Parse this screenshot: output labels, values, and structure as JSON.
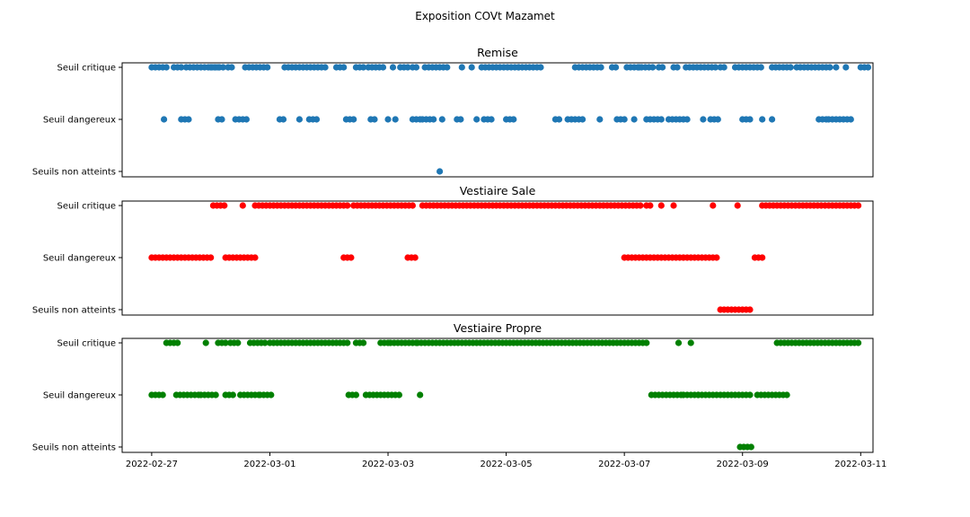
{
  "chart_data": {
    "type": "scatter",
    "suptitle": "Exposition COVt Mazamet",
    "y_categories": [
      "Seuils non atteints",
      "Seuil dangereux",
      "Seuil critique"
    ],
    "x_ticks": [
      "2022-02-27",
      "2022-03-01",
      "2022-03-03",
      "2022-03-05",
      "2022-03-07",
      "2022-03-09",
      "2022-03-11"
    ],
    "xlim": [
      "2022-02-26T12:00",
      "2022-03-11T05:00"
    ],
    "panels": [
      {
        "title": "Remise",
        "color": "#1f77b4",
        "show_x_labels": false,
        "series": {
          "Seuil critique": [
            [
              "02-27T00:00",
              "02-27T06:00"
            ],
            [
              "02-27T09:00",
              "02-27T12:00"
            ],
            [
              "02-27T14:00",
              "02-28T05:00"
            ],
            [
              "02-28T07:00",
              "02-28T09:00"
            ],
            [
              "02-28T14:00",
              "03-01T00:00"
            ],
            [
              "02-28T00:00",
              "02-28T04:00"
            ],
            [
              "03-01T06:00",
              "03-01T23:00"
            ],
            [
              "03-02T03:00",
              "03-02T07:00"
            ],
            [
              "03-02T11:00",
              "03-02T15:00"
            ],
            [
              "03-02T16:00",
              "03-02T22:00"
            ],
            [
              "03-03T02:00",
              "03-03T03:00"
            ],
            [
              "03-03T05:00",
              "03-03T08:00"
            ],
            [
              "03-03T10:00",
              "03-03T12:00"
            ],
            [
              "03-03T15:00",
              "03-04T00:00"
            ],
            [
              "03-04T06:00",
              "03-04T07:00"
            ],
            [
              "03-04T10:00",
              "03-04T11:00"
            ],
            [
              "03-04T14:00",
              "03-04T19:00"
            ],
            [
              "03-04T20:00",
              "03-05T05:00"
            ],
            [
              "03-05T05:00",
              "03-05T15:00"
            ],
            [
              "03-06T04:00",
              "03-06T15:00"
            ],
            [
              "03-06T19:00",
              "03-06T21:00"
            ],
            [
              "03-07T01:00",
              "03-07T12:00"
            ],
            [
              "03-07T06:00",
              "03-07T07:00"
            ],
            [
              "03-07T14:00",
              "03-07T16:00"
            ],
            [
              "03-07T20:00",
              "03-07T22:00"
            ],
            [
              "03-08T01:00",
              "03-08T13:00"
            ],
            [
              "03-08T15:00",
              "03-08T17:00"
            ],
            [
              "03-08T21:00",
              "03-09T08:00"
            ],
            [
              "03-09T12:00",
              "03-09T20:00"
            ],
            [
              "03-09T22:00",
              "03-10T12:00"
            ],
            [
              "03-10T14:00",
              "03-10T14:00"
            ],
            [
              "03-10T18:00",
              "03-10T19:00"
            ],
            [
              "03-11T00:00",
              "03-11T08:00"
            ]
          ],
          "Seuil dangereux": [
            [
              "02-27T05:00",
              "02-27T05:00"
            ],
            [
              "02-27T12:00",
              "02-27T16:00"
            ],
            [
              "02-28T03:00",
              "02-28T05:00"
            ],
            [
              "02-28T10:00",
              "02-28T15:00"
            ],
            [
              "03-01T04:00",
              "03-01T06:00"
            ],
            [
              "03-01T12:00",
              "03-01T13:00"
            ],
            [
              "03-01T16:00",
              "03-01T19:00"
            ],
            [
              "03-02T07:00",
              "03-02T10:00"
            ],
            [
              "03-02T17:00",
              "03-02T19:00"
            ],
            [
              "03-03T00:00",
              "03-03T00:00"
            ],
            [
              "03-03T03:00",
              "03-03T03:00"
            ],
            [
              "03-03T10:00",
              "03-03T14:00"
            ],
            [
              "03-03T14:00",
              "03-03T19:00"
            ],
            [
              "03-03T22:00",
              "03-03T22:00"
            ],
            [
              "03-04T04:00",
              "03-04T06:00"
            ],
            [
              "03-04T12:00",
              "03-04T12:00"
            ],
            [
              "03-04T15:00",
              "03-04T18:00"
            ],
            [
              "03-05T00:00",
              "03-05T03:00"
            ],
            [
              "03-05T20:00",
              "03-05T22:00"
            ],
            [
              "03-06T01:00",
              "03-06T08:00"
            ],
            [
              "03-06T14:00",
              "03-06T15:00"
            ],
            [
              "03-06T21:00",
              "03-07T00:00"
            ],
            [
              "03-07T04:00",
              "03-07T05:00"
            ],
            [
              "03-07T09:00",
              "03-07T15:00"
            ],
            [
              "03-07T18:00",
              "03-07T23:00"
            ],
            [
              "03-08T00:00",
              "03-08T02:00"
            ],
            [
              "03-08T08:00",
              "03-08T08:00"
            ],
            [
              "03-08T11:00",
              "03-08T15:00"
            ],
            [
              "03-09T00:00",
              "03-09T04:00"
            ],
            [
              "03-09T08:00",
              "03-09T08:00"
            ],
            [
              "03-09T12:00",
              "03-09T12:00"
            ],
            [
              "03-10T07:00",
              "03-10T10:00"
            ],
            [
              "03-10T11:00",
              "03-10T20:00"
            ]
          ],
          "Seuils non atteints": [
            [
              "03-03T21:00",
              "03-03T21:00"
            ]
          ]
        }
      },
      {
        "title": "Vestiaire Sale",
        "color": "#ff0000",
        "show_x_labels": false,
        "series": {
          "Seuil critique": [
            [
              "02-28T01:00",
              "02-28T06:00"
            ],
            [
              "02-28T13:00",
              "02-28T13:00"
            ],
            [
              "02-28T18:00",
              "03-02T08:00"
            ],
            [
              "03-02T10:00",
              "03-03T10:00"
            ],
            [
              "03-03T14:00",
              "03-07T07:00"
            ],
            [
              "03-07T09:00",
              "03-07T11:00"
            ],
            [
              "03-07T15:00",
              "03-07T15:00"
            ],
            [
              "03-07T20:00",
              "03-07T20:00"
            ],
            [
              "03-08T12:00",
              "03-08T12:00"
            ],
            [
              "03-08T22:00",
              "03-08T22:00"
            ],
            [
              "03-09T08:00",
              "03-11T00:00"
            ]
          ],
          "Seuil dangereux": [
            [
              "02-27T00:00",
              "02-28T01:00"
            ],
            [
              "02-28T06:00",
              "02-28T19:00"
            ],
            [
              "03-02T06:00",
              "03-02T09:00"
            ],
            [
              "03-03T08:00",
              "03-03T11:00"
            ],
            [
              "03-07T00:00",
              "03-08T14:00"
            ],
            [
              "03-09T05:00",
              "03-09T09:00"
            ]
          ],
          "Seuils non atteints": [
            [
              "03-08T15:00",
              "03-09T03:00"
            ]
          ]
        }
      },
      {
        "title": "Vestiaire Propre",
        "color": "#008000",
        "show_x_labels": true,
        "series": {
          "Seuil critique": [
            [
              "02-27T06:00",
              "02-27T11:00"
            ],
            [
              "02-27T22:00",
              "02-27T22:00"
            ],
            [
              "02-28T03:00",
              "02-28T07:00"
            ],
            [
              "02-28T08:00",
              "02-28T12:00"
            ],
            [
              "02-28T16:00",
              "02-28T22:00"
            ],
            [
              "03-01T00:00",
              "03-02T08:00"
            ],
            [
              "03-02T11:00",
              "03-02T14:00"
            ],
            [
              "03-02T21:00",
              "03-03T00:00"
            ],
            [
              "03-03T01:00",
              "03-03T12:00"
            ],
            [
              "03-03T12:00",
              "03-07T10:00"
            ],
            [
              "03-07T22:00",
              "03-07T22:00"
            ],
            [
              "03-08T03:00",
              "03-08T03:00"
            ],
            [
              "03-09T14:00",
              "03-11T00:00"
            ]
          ],
          "Seuil dangereux": [
            [
              "02-27T00:00",
              "02-27T05:00"
            ],
            [
              "02-27T10:00",
              "02-27T20:00"
            ],
            [
              "02-27T20:00",
              "02-28T02:00"
            ],
            [
              "02-28T06:00",
              "02-28T09:00"
            ],
            [
              "02-28T12:00",
              "02-28T20:00"
            ],
            [
              "02-28T20:00",
              "03-01T01:00"
            ],
            [
              "03-02T08:00",
              "03-02T12:00"
            ],
            [
              "03-02T15:00",
              "03-02T23:00"
            ],
            [
              "03-03T00:00",
              "03-03T05:00"
            ],
            [
              "03-03T13:00",
              "03-03T13:00"
            ],
            [
              "03-07T11:00",
              "03-08T00:00"
            ],
            [
              "03-08T00:00",
              "03-08T06:00"
            ],
            [
              "03-08T06:00",
              "03-09T04:00"
            ],
            [
              "03-09T06:00",
              "03-09T19:00"
            ]
          ],
          "Seuils non atteints": [
            [
              "03-08T23:00",
              "03-09T04:00"
            ]
          ]
        }
      }
    ]
  }
}
